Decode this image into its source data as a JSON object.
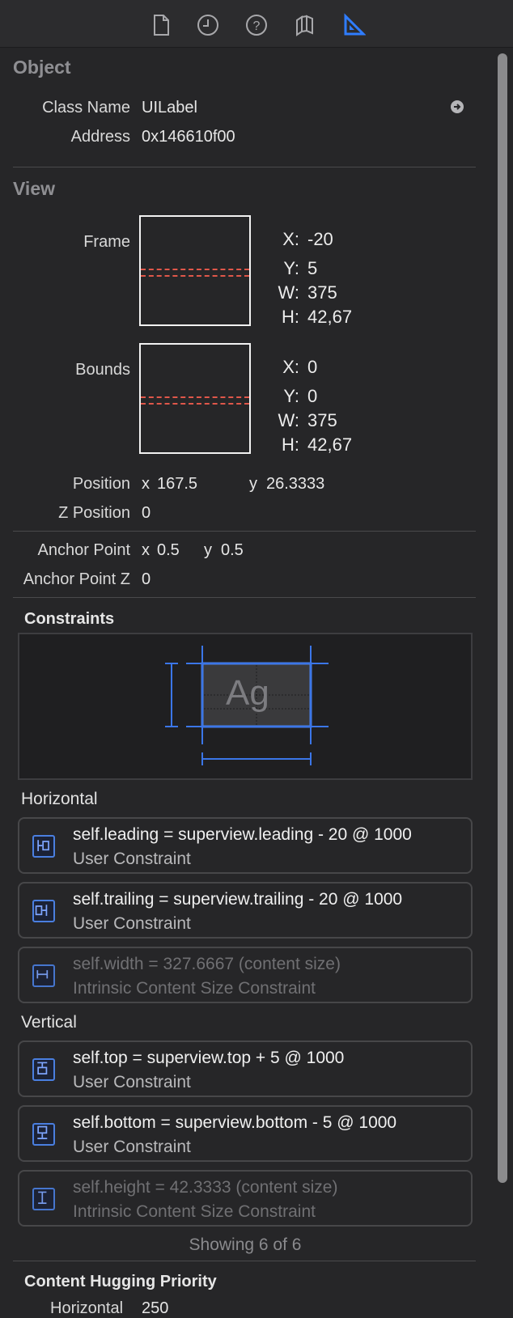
{
  "toolbar": {
    "icons": [
      "file-inspector-icon",
      "history-icon",
      "quick-help-icon",
      "layers-icon",
      "size-inspector-icon"
    ],
    "active": "size-inspector-icon",
    "accent": "#2f7dff"
  },
  "object": {
    "title": "Object",
    "class_name_label": "Class Name",
    "class_name_value": "UILabel",
    "address_label": "Address",
    "address_value": "0x146610f00"
  },
  "view": {
    "title": "View",
    "frame": {
      "label": "Frame",
      "x_key": "X:",
      "x": "-20",
      "y_key": "Y:",
      "y": "5",
      "w_key": "W:",
      "w": "375",
      "h_key": "H:",
      "h": "42,67"
    },
    "bounds": {
      "label": "Bounds",
      "x_key": "X:",
      "x": "0",
      "y_key": "Y:",
      "y": "0",
      "w_key": "W:",
      "w": "375",
      "h_key": "H:",
      "h": "42,67"
    },
    "position": {
      "label": "Position",
      "x_key": "x",
      "x": "167.5",
      "y_key": "y",
      "y": "26.3333"
    },
    "z_position": {
      "label": "Z Position",
      "value": "0"
    },
    "anchor_point": {
      "label": "Anchor Point",
      "x_key": "x",
      "x": "0.5",
      "y_key": "y",
      "y": "0.5"
    },
    "anchor_point_z": {
      "label": "Anchor Point Z",
      "value": "0"
    }
  },
  "constraints": {
    "title": "Constraints",
    "preview_text": "Ag",
    "horizontal_title": "Horizontal",
    "horizontal": [
      {
        "expr": "self.leading = superview.leading - 20 @ 1000",
        "kind": "User Constraint",
        "icon": "leading-constraint-icon",
        "dim": false
      },
      {
        "expr": "self.trailing = superview.trailing - 20 @ 1000",
        "kind": "User Constraint",
        "icon": "trailing-constraint-icon",
        "dim": false
      },
      {
        "expr": "self.width = 327.6667 (content size)",
        "kind": "Intrinsic Content Size Constraint",
        "icon": "width-constraint-icon",
        "dim": true
      }
    ],
    "vertical_title": "Vertical",
    "vertical": [
      {
        "expr": "self.top = superview.top + 5 @ 1000",
        "kind": "User Constraint",
        "icon": "top-constraint-icon",
        "dim": false
      },
      {
        "expr": "self.bottom = superview.bottom - 5 @ 1000",
        "kind": "User Constraint",
        "icon": "bottom-constraint-icon",
        "dim": false
      },
      {
        "expr": "self.height = 42.3333 (content size)",
        "kind": "Intrinsic Content Size Constraint",
        "icon": "height-constraint-icon",
        "dim": true
      }
    ],
    "showing": "Showing 6 of 6"
  },
  "content_hugging": {
    "title": "Content Hugging Priority",
    "horizontal_label": "Horizontal",
    "horizontal_value": "250"
  }
}
